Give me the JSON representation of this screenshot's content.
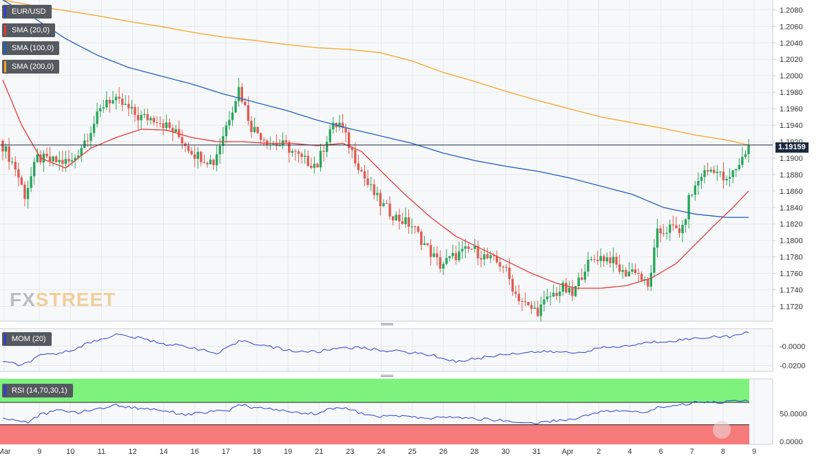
{
  "chart_data": {
    "type": "candlestick",
    "symbol": "EUR/USD",
    "last_price": "1.19159",
    "indicators": [
      {
        "name": "SMA (20,0)",
        "color": "#e53935"
      },
      {
        "name": "SMA (100,0)",
        "color": "#1e5fbf"
      },
      {
        "name": "SMA (200,0)",
        "color": "#f5a623"
      }
    ],
    "price_axis": {
      "ticks": [
        "1.2080",
        "1.2060",
        "1.2040",
        "1.2020",
        "1.2000",
        "1.1980",
        "1.1960",
        "1.1940",
        "1.1920",
        "1.1900",
        "1.1880",
        "1.1860",
        "1.1840",
        "1.1820",
        "1.1800",
        "1.1780",
        "1.1760",
        "1.1740",
        "1.1720"
      ],
      "range": [
        1.1702,
        1.2092
      ]
    },
    "x_labels": [
      "Mar",
      "9",
      "10",
      "11",
      "12",
      "14",
      "16",
      "17",
      "18",
      "19",
      "21",
      "23",
      "24",
      "25",
      "26",
      "28",
      "30",
      "31",
      "Apr",
      "2",
      "4",
      "6",
      "7",
      "8",
      "9"
    ],
    "candles_bull_color": "#26a65b",
    "candles_bear_color": "#e05a4f",
    "anchors": {
      "close": [
        [
          0,
          1.1915
        ],
        [
          4,
          1.1888
        ],
        [
          7,
          1.1855
        ],
        [
          11,
          1.19
        ],
        [
          16,
          1.1896
        ],
        [
          22,
          1.1895
        ],
        [
          27,
          1.1928
        ],
        [
          33,
          1.1972
        ],
        [
          38,
          1.1965
        ],
        [
          43,
          1.195
        ],
        [
          49,
          1.1948
        ],
        [
          55,
          1.193
        ],
        [
          61,
          1.1905
        ],
        [
          67,
          1.1895
        ],
        [
          73,
          1.1962
        ],
        [
          75,
          1.1985
        ],
        [
          79,
          1.1938
        ],
        [
          85,
          1.1918
        ],
        [
          90,
          1.1915
        ],
        [
          95,
          1.1898
        ],
        [
          100,
          1.1892
        ],
        [
          104,
          1.1935
        ],
        [
          107,
          1.1942
        ],
        [
          111,
          1.1908
        ],
        [
          116,
          1.1868
        ],
        [
          120,
          1.1845
        ],
        [
          125,
          1.1828
        ],
        [
          130,
          1.1818
        ],
        [
          135,
          1.179
        ],
        [
          139,
          1.177
        ],
        [
          144,
          1.1782
        ],
        [
          149,
          1.179
        ],
        [
          154,
          1.1778
        ],
        [
          159,
          1.177
        ],
        [
          163,
          1.1735
        ],
        [
          167,
          1.1718
        ],
        [
          170,
          1.1715
        ],
        [
          174,
          1.1732
        ],
        [
          178,
          1.1742
        ],
        [
          181,
          1.1733
        ],
        [
          185,
          1.1768
        ],
        [
          189,
          1.178
        ],
        [
          193,
          1.1778
        ],
        [
          197,
          1.176
        ],
        [
          201,
          1.1765
        ],
        [
          205,
          1.1742
        ],
        [
          208,
          1.1808
        ],
        [
          212,
          1.1815
        ],
        [
          216,
          1.1812
        ],
        [
          218,
          1.185
        ],
        [
          222,
          1.188
        ],
        [
          226,
          1.1888
        ],
        [
          230,
          1.187
        ],
        [
          233,
          1.1888
        ],
        [
          235,
          1.19
        ],
        [
          237,
          1.1917
        ]
      ],
      "sma20": [
        [
          0,
          1.1995
        ],
        [
          6,
          1.194
        ],
        [
          12,
          1.19
        ],
        [
          20,
          1.1888
        ],
        [
          28,
          1.1912
        ],
        [
          36,
          1.1925
        ],
        [
          44,
          1.1935
        ],
        [
          52,
          1.1934
        ],
        [
          60,
          1.1925
        ],
        [
          68,
          1.192
        ],
        [
          76,
          1.192
        ],
        [
          84,
          1.1918
        ],
        [
          92,
          1.1918
        ],
        [
          100,
          1.1915
        ],
        [
          108,
          1.1918
        ],
        [
          114,
          1.1908
        ],
        [
          120,
          1.1885
        ],
        [
          128,
          1.1855
        ],
        [
          136,
          1.1828
        ],
        [
          144,
          1.1805
        ],
        [
          152,
          1.179
        ],
        [
          160,
          1.1775
        ],
        [
          168,
          1.176
        ],
        [
          176,
          1.1748
        ],
        [
          182,
          1.1742
        ],
        [
          190,
          1.1742
        ],
        [
          198,
          1.1745
        ],
        [
          206,
          1.1754
        ],
        [
          214,
          1.1772
        ],
        [
          220,
          1.1795
        ],
        [
          226,
          1.1818
        ],
        [
          232,
          1.184
        ],
        [
          237,
          1.186
        ]
      ],
      "sma100": [
        [
          0,
          1.2092
        ],
        [
          10,
          1.207
        ],
        [
          20,
          1.2045
        ],
        [
          30,
          1.2025
        ],
        [
          40,
          1.201
        ],
        [
          50,
          1.2
        ],
        [
          60,
          1.199
        ],
        [
          70,
          1.1978
        ],
        [
          80,
          1.1968
        ],
        [
          90,
          1.1958
        ],
        [
          100,
          1.1946
        ],
        [
          110,
          1.1936
        ],
        [
          120,
          1.1927
        ],
        [
          130,
          1.1918
        ],
        [
          140,
          1.1906
        ],
        [
          150,
          1.1897
        ],
        [
          160,
          1.189
        ],
        [
          170,
          1.1884
        ],
        [
          180,
          1.1876
        ],
        [
          190,
          1.1866
        ],
        [
          200,
          1.1856
        ],
        [
          210,
          1.184
        ],
        [
          220,
          1.1832
        ],
        [
          230,
          1.1828
        ],
        [
          237,
          1.1828
        ]
      ],
      "sma200": [
        [
          0,
          1.2092
        ],
        [
          10,
          1.2085
        ],
        [
          20,
          1.2079
        ],
        [
          30,
          1.2073
        ],
        [
          40,
          1.2066
        ],
        [
          50,
          1.206
        ],
        [
          60,
          1.2053
        ],
        [
          70,
          1.2047
        ],
        [
          80,
          1.2043
        ],
        [
          90,
          1.2038
        ],
        [
          100,
          1.2034
        ],
        [
          110,
          1.2032
        ],
        [
          120,
          1.2028
        ],
        [
          130,
          1.2018
        ],
        [
          140,
          1.2004
        ],
        [
          150,
          1.1993
        ],
        [
          160,
          1.1981
        ],
        [
          170,
          1.197
        ],
        [
          180,
          1.196
        ],
        [
          190,
          1.195
        ],
        [
          200,
          1.1943
        ],
        [
          210,
          1.1936
        ],
        [
          220,
          1.1928
        ],
        [
          230,
          1.1922
        ],
        [
          237,
          1.1916
        ]
      ]
    },
    "panes": [
      {
        "name": "MOM (20)",
        "color": "#2a3fd6",
        "ticks": [
          "-0.0000",
          "-0.0200"
        ],
        "range": [
          -0.026,
          0.018
        ],
        "anchors": [
          [
            0,
            -0.016
          ],
          [
            6,
            -0.02
          ],
          [
            12,
            -0.01
          ],
          [
            20,
            -0.006
          ],
          [
            28,
            0.004
          ],
          [
            36,
            0.012
          ],
          [
            44,
            0.008
          ],
          [
            52,
            0.002
          ],
          [
            60,
            -0.001
          ],
          [
            68,
            -0.008
          ],
          [
            76,
            0.006
          ],
          [
            84,
            0.0
          ],
          [
            92,
            -0.005
          ],
          [
            100,
            -0.006
          ],
          [
            108,
            -0.001
          ],
          [
            114,
            -0.002
          ],
          [
            120,
            -0.004
          ],
          [
            128,
            -0.006
          ],
          [
            136,
            -0.009
          ],
          [
            144,
            -0.016
          ],
          [
            152,
            -0.012
          ],
          [
            160,
            -0.008
          ],
          [
            168,
            -0.006
          ],
          [
            176,
            -0.006
          ],
          [
            182,
            -0.007
          ],
          [
            190,
            -0.002
          ],
          [
            198,
            0.0
          ],
          [
            206,
            0.004
          ],
          [
            214,
            0.006
          ],
          [
            220,
            0.008
          ],
          [
            226,
            0.01
          ],
          [
            232,
            0.01
          ],
          [
            237,
            0.014
          ]
        ]
      },
      {
        "name": "RSI (14,70,30,1)",
        "color": "#2a3fd6",
        "ticks": [
          "50.0000",
          "0.0000"
        ],
        "range": [
          -5,
          112
        ],
        "overbought": 70,
        "oversold": 30,
        "overbought_fill": "#7df27d",
        "oversold_fill": "#f77a7a",
        "anchors": [
          [
            0,
            42
          ],
          [
            4,
            38
          ],
          [
            8,
            35
          ],
          [
            12,
            48
          ],
          [
            18,
            56
          ],
          [
            24,
            52
          ],
          [
            30,
            58
          ],
          [
            36,
            65
          ],
          [
            42,
            60
          ],
          [
            48,
            58
          ],
          [
            52,
            55
          ],
          [
            58,
            48
          ],
          [
            64,
            52
          ],
          [
            72,
            56
          ],
          [
            76,
            66
          ],
          [
            80,
            60
          ],
          [
            86,
            58
          ],
          [
            92,
            52
          ],
          [
            100,
            50
          ],
          [
            106,
            62
          ],
          [
            110,
            58
          ],
          [
            116,
            46
          ],
          [
            122,
            45
          ],
          [
            128,
            46
          ],
          [
            134,
            40
          ],
          [
            140,
            44
          ],
          [
            146,
            42
          ],
          [
            152,
            40
          ],
          [
            158,
            38
          ],
          [
            164,
            34
          ],
          [
            170,
            33
          ],
          [
            176,
            38
          ],
          [
            182,
            40
          ],
          [
            188,
            52
          ],
          [
            194,
            55
          ],
          [
            200,
            53
          ],
          [
            204,
            52
          ],
          [
            208,
            60
          ],
          [
            212,
            64
          ],
          [
            216,
            66
          ],
          [
            220,
            70
          ],
          [
            224,
            72
          ],
          [
            228,
            70
          ],
          [
            232,
            72
          ],
          [
            237,
            74
          ]
        ]
      }
    ]
  }
}
